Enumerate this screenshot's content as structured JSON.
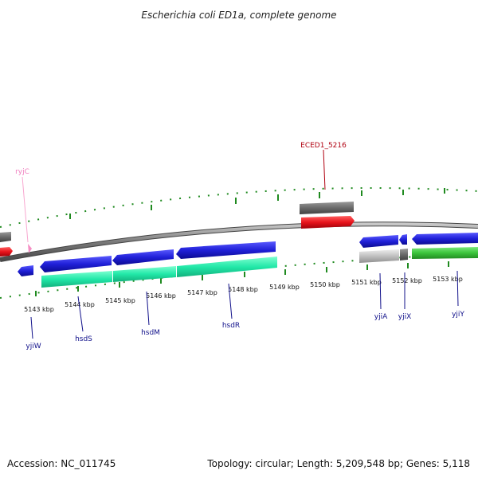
{
  "title": "Escherichia coli ED1a, complete genome",
  "footer": {
    "accession": "Accession: NC_011745",
    "summary": "Topology: circular; Length: 5,209,548 bp; Genes: 5,118"
  },
  "colors": {
    "backbone": "#7a7a7a",
    "tick": "#1f8a1f",
    "forward_gene": "#e8141c",
    "reverse_gene": "#2020d8",
    "cds_cyan": "#22e8a8",
    "cds_green": "#3cc43c",
    "pseudo_gray": "#6a6a6a",
    "light_gray": "#c0c0c0",
    "label_blue": "#10108a",
    "label_red": "#b00010",
    "label_pink": "#f080c0"
  },
  "scale_labels": [
    "5143 kbp",
    "5144 kbp",
    "5145 kbp",
    "5146 kbp",
    "5147 kbp",
    "5148 kbp",
    "5149 kbp",
    "5150 kbp",
    "5151 kbp",
    "5152 kbp",
    "5153 kbp"
  ],
  "gene_labels": {
    "top": [
      {
        "name": "ryjC",
        "color": "pink"
      },
      {
        "name": "ECED1_5216",
        "color": "red"
      }
    ],
    "bottom": [
      {
        "name": "yjiW"
      },
      {
        "name": "hsdS"
      },
      {
        "name": "hsdM"
      },
      {
        "name": "hsdR"
      },
      {
        "name": "yjiA"
      },
      {
        "name": "yjiX"
      },
      {
        "name": "yjiY"
      }
    ]
  }
}
